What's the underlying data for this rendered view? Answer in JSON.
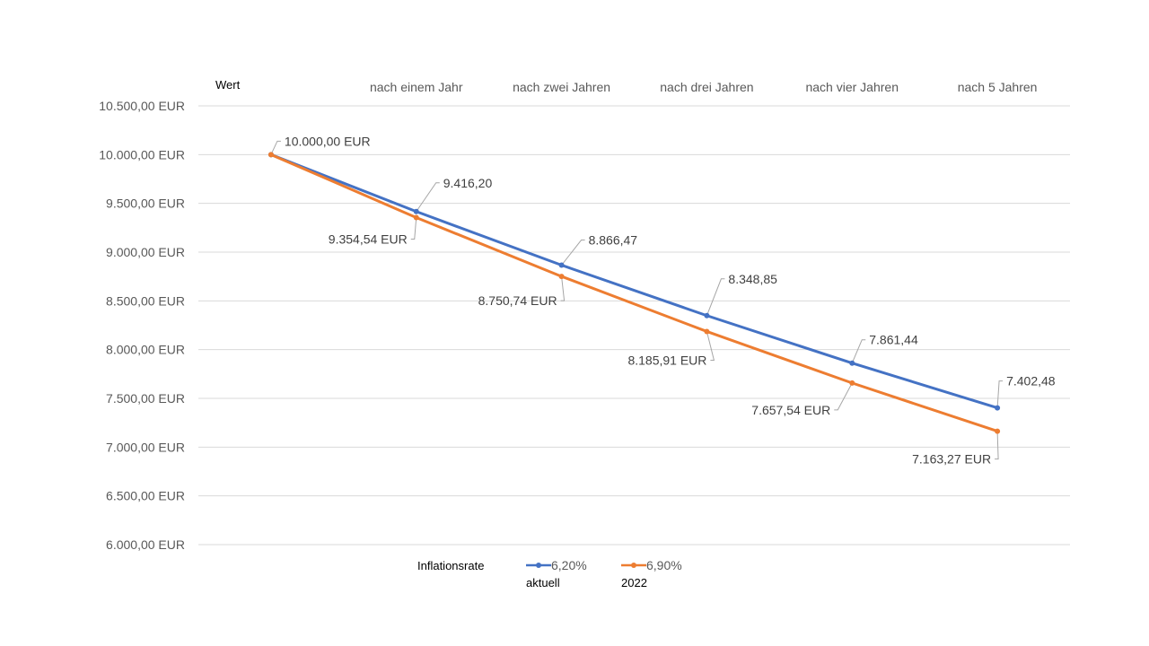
{
  "chart_data": {
    "type": "line",
    "ylabel": "Wert",
    "ylim": [
      6000,
      10500
    ],
    "ytick_step": 500,
    "y_tick_labels": [
      "6.000,00 EUR",
      "6.500,00 EUR",
      "7.000,00 EUR",
      "7.500,00 EUR",
      "8.000,00 EUR",
      "8.500,00 EUR",
      "9.000,00 EUR",
      "9.500,00 EUR",
      "10.000,00 EUR",
      "10.500,00 EUR"
    ],
    "categories": [
      "",
      "nach einem Jahr",
      "nach zwei Jahren",
      "nach drei Jahren",
      "nach vier Jahren",
      "nach 5 Jahren"
    ],
    "series": [
      {
        "name": "6,20% aktuell",
        "legend_line1": "6,20%",
        "legend_line2": "aktuell",
        "color": "#4472c4",
        "values": [
          10000.0,
          9416.2,
          8866.47,
          8348.85,
          7861.44,
          7402.48
        ],
        "labels": [
          "",
          "9.416,20",
          "8.866,47",
          "8.348,85",
          "7.861,44",
          "7.402,48"
        ]
      },
      {
        "name": "6,90% 2022",
        "legend_line1": "6,90%",
        "legend_line2": "2022",
        "color": "#ed7d31",
        "values": [
          10000.0,
          9354.54,
          8750.74,
          8185.91,
          7657.54,
          7163.27
        ],
        "labels": [
          "10.000,00 EUR",
          "9.354,54 EUR",
          "8.750,74 EUR",
          "8.185,91 EUR",
          "7.657,54 EUR",
          "7.163,27 EUR"
        ]
      }
    ],
    "legend": {
      "title": "Inflationsrate",
      "position": "bottom"
    }
  }
}
